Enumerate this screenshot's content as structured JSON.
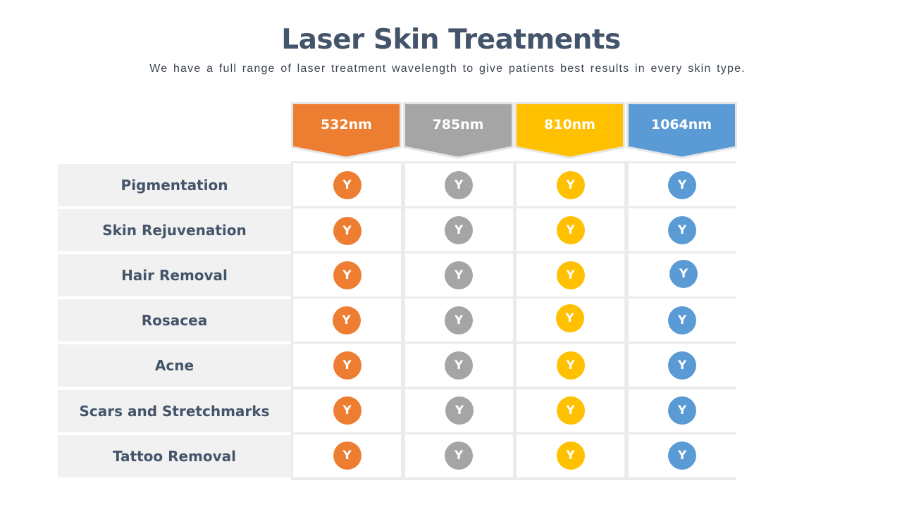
{
  "title": "Laser Skin Treatments",
  "subtitle": "We have a full range of laser treatment wavelength to give patients best results in every skin type.",
  "columns": [
    {
      "label": "532nm",
      "color": "#ed7d31"
    },
    {
      "label": "785nm",
      "color": "#a5a5a5"
    },
    {
      "label": "810nm",
      "color": "#ffc000"
    },
    {
      "label": "1064nm",
      "color": "#5b9bd5"
    }
  ],
  "rows": [
    {
      "label": "Pigmentation",
      "marks": [
        "Y",
        "Y",
        "Y",
        "Y"
      ]
    },
    {
      "label": "Skin Rejuvenation",
      "marks": [
        "Y",
        "Y",
        "Y",
        "Y"
      ]
    },
    {
      "label": "Hair Removal",
      "marks": [
        "Y",
        "Y",
        "Y",
        "Y"
      ]
    },
    {
      "label": "Rosacea",
      "marks": [
        "Y",
        "Y",
        "Y",
        "Y"
      ]
    },
    {
      "label": "Acne",
      "marks": [
        "Y",
        "Y",
        "Y",
        "Y"
      ]
    },
    {
      "label": "Scars and Stretchmarks",
      "marks": [
        "Y",
        "Y",
        "Y",
        "Y"
      ]
    },
    {
      "label": "Tattoo Removal",
      "marks": [
        "Y",
        "Y",
        "Y",
        "Y"
      ]
    }
  ]
}
